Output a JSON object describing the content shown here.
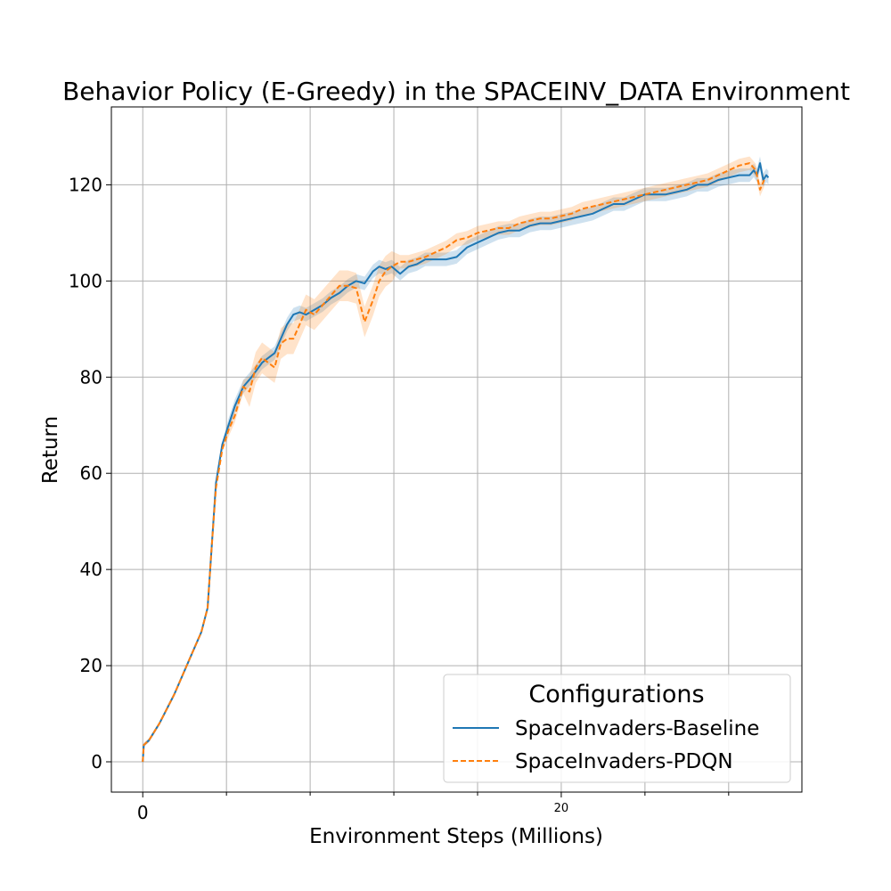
{
  "chart_data": {
    "type": "line",
    "title": "Behavior Policy (E-Greedy) in the SPACEINV_DATA Environment",
    "xlabel": "Environment Steps (Millions)",
    "ylabel": "Return",
    "xlim": [
      -1.5,
      31.5
    ],
    "ylim": [
      -6.3,
      136.2
    ],
    "x_major_ticks": [
      {
        "value": 0,
        "label": "0"
      },
      {
        "value": 20,
        "label": "20"
      }
    ],
    "x_minor_ticks": [
      4,
      8,
      12,
      16,
      24,
      28
    ],
    "y_ticks": [
      0,
      20,
      40,
      60,
      80,
      100,
      120
    ],
    "grid": true,
    "legend": {
      "title": "Configurations",
      "placement": "bottom-right"
    },
    "colors": {
      "baseline": "#1f77b4",
      "pdqn": "#ff7f0e"
    },
    "series": [
      {
        "name": "SpaceInvaders-Baseline",
        "style": "solid",
        "x": [
          0,
          0.05,
          0.3,
          0.8,
          1.5,
          2.2,
          2.8,
          3.1,
          3.3,
          3.5,
          3.8,
          4.1,
          4.4,
          4.8,
          5.2,
          5.7,
          6.0,
          6.3,
          6.6,
          6.9,
          7.2,
          7.5,
          7.8,
          8.2,
          8.6,
          9.0,
          9.4,
          9.8,
          10.2,
          10.6,
          11.0,
          11.3,
          11.6,
          11.9,
          12.3,
          12.7,
          13.1,
          13.5,
          14.0,
          14.5,
          15.0,
          15.5,
          16.0,
          16.5,
          17.0,
          17.5,
          18.0,
          18.5,
          19.0,
          19.5,
          20.0,
          20.5,
          21.0,
          21.5,
          22.0,
          22.5,
          23.0,
          23.5,
          24.0,
          24.5,
          25.0,
          25.5,
          26.0,
          26.5,
          27.0,
          27.5,
          28.0,
          28.5,
          29.0,
          29.2,
          29.35,
          29.5,
          29.65,
          29.8,
          29.9
        ],
        "y": [
          0,
          3.5,
          4.5,
          8,
          14,
          21,
          27,
          32,
          45,
          58,
          66,
          70,
          74,
          78,
          80,
          83,
          84,
          85,
          88,
          91,
          93,
          93.5,
          93,
          94,
          95,
          96.5,
          97.5,
          99,
          100,
          99.5,
          102,
          103,
          102.5,
          103,
          101.5,
          103,
          103.5,
          104.5,
          104.5,
          104.5,
          105,
          107,
          108,
          109,
          110,
          110.5,
          110.5,
          111.5,
          112,
          112,
          112.5,
          113,
          113.5,
          114,
          115,
          116,
          116,
          117,
          118,
          118,
          118,
          118.5,
          119,
          120,
          120,
          121,
          121.5,
          122,
          122,
          123,
          122,
          124.5,
          121,
          122,
          121.5
        ]
      },
      {
        "name": "SpaceInvaders-PDQN",
        "style": "dashed",
        "x": [
          0,
          0.05,
          0.3,
          0.8,
          1.5,
          2.2,
          2.8,
          3.1,
          3.3,
          3.5,
          3.8,
          4.1,
          4.4,
          4.8,
          5.1,
          5.4,
          5.7,
          6.0,
          6.3,
          6.6,
          6.9,
          7.2,
          7.5,
          7.8,
          8.2,
          8.6,
          9.0,
          9.4,
          9.8,
          10.2,
          10.6,
          11.0,
          11.3,
          11.6,
          11.9,
          12.3,
          12.7,
          13.1,
          13.5,
          14.0,
          14.5,
          15.0,
          15.5,
          16.0,
          16.5,
          17.0,
          17.5,
          18.0,
          18.5,
          19.0,
          19.5,
          20.0,
          20.5,
          21.0,
          21.5,
          22.0,
          22.5,
          23.0,
          23.5,
          24.0,
          24.5,
          25.0,
          25.5,
          26.0,
          26.5,
          27.0,
          27.5,
          28.0,
          28.5,
          29.0,
          29.3,
          29.5,
          29.7
        ],
        "y": [
          0,
          3.5,
          4.5,
          8,
          14,
          21,
          27,
          32,
          45,
          57,
          65,
          69,
          72,
          78,
          77,
          82,
          84,
          83,
          82,
          87,
          88,
          88,
          91,
          94,
          93,
          95,
          97,
          99,
          99,
          98.5,
          91.5,
          96,
          100,
          102,
          103,
          104,
          104,
          104.5,
          105,
          106,
          107,
          108.5,
          109,
          110,
          110.5,
          111,
          111,
          112,
          112.5,
          113,
          113,
          113.5,
          114,
          115,
          115.5,
          116,
          116.5,
          117,
          117.5,
          118,
          118.5,
          119,
          119.5,
          120,
          120.5,
          121,
          122,
          123,
          124,
          124.5,
          123,
          119,
          121
        ]
      }
    ]
  }
}
